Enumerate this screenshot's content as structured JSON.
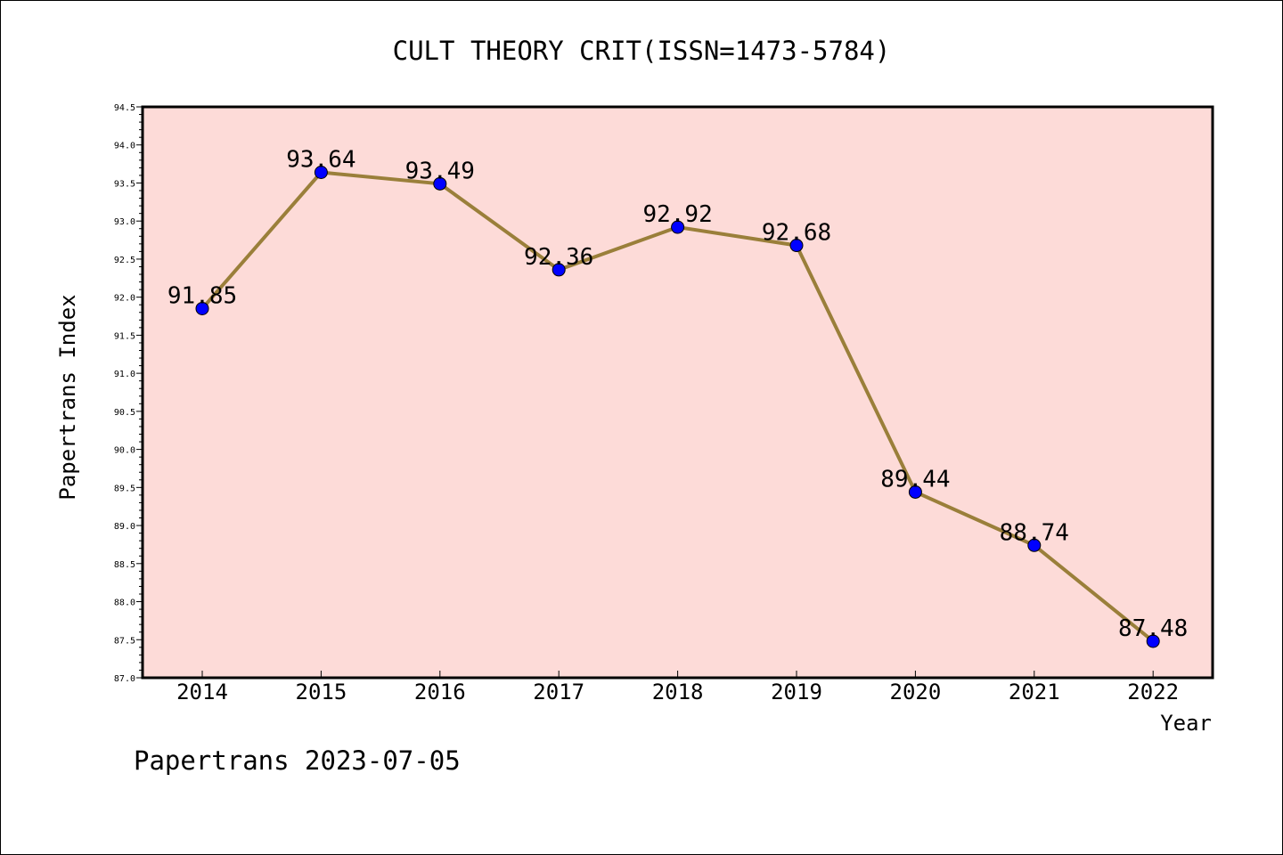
{
  "chart_data": {
    "type": "line",
    "title": "CULT THEORY CRIT(ISSN=1473-5784)",
    "xlabel": "Year",
    "ylabel": "Papertrans Index",
    "categories": [
      "2014",
      "2015",
      "2016",
      "2017",
      "2018",
      "2019",
      "2020",
      "2021",
      "2022"
    ],
    "values": [
      91.85,
      93.64,
      93.49,
      92.36,
      92.92,
      92.68,
      89.44,
      88.74,
      87.48
    ],
    "data_labels": [
      "91.85",
      "93.64",
      "93.49",
      "92.36",
      "92.92",
      "92.68",
      "89.44",
      "88.74",
      "87.48"
    ],
    "ylim": [
      87.0,
      94.5
    ],
    "yticks": [
      "87.0",
      "87.5",
      "88.0",
      "88.5",
      "89.0",
      "89.5",
      "90.0",
      "90.5",
      "91.0",
      "91.5",
      "92.0",
      "92.5",
      "93.0",
      "93.5",
      "94.0",
      "94.5"
    ],
    "grid": false,
    "colors": {
      "plot_background": "#fddbd8",
      "line": "#9a7f3a",
      "marker": "#0000ff"
    }
  },
  "footer": "Papertrans 2023-07-05"
}
